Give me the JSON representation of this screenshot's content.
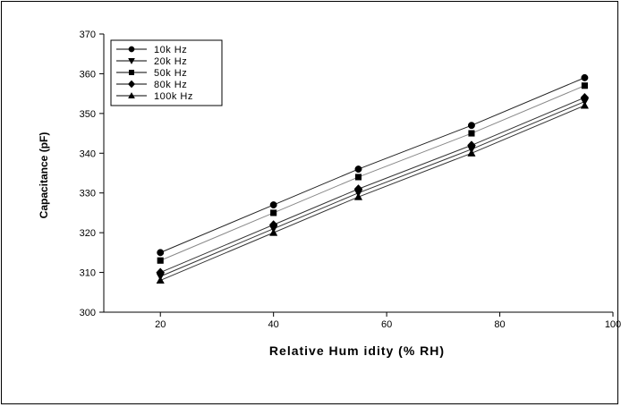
{
  "chart_data": {
    "type": "line",
    "title": "",
    "xlabel": "Relative Hum idity (% RH)",
    "ylabel": "Capacitance (pF)",
    "xlim": [
      10,
      100
    ],
    "ylim": [
      300,
      370
    ],
    "x_ticks": [
      20,
      40,
      60,
      80,
      100
    ],
    "y_ticks": [
      300,
      310,
      320,
      330,
      340,
      350,
      360,
      370
    ],
    "grid": false,
    "legend_position": "top-left",
    "x": [
      20,
      40,
      55,
      75,
      95
    ],
    "series": [
      {
        "name": "10k Hz",
        "marker": "circle",
        "color": "#000000",
        "values": [
          315,
          327,
          336,
          347,
          359
        ]
      },
      {
        "name": "20k Hz",
        "marker": "triangle-down",
        "color": "#000000",
        "values": [
          309,
          321,
          330,
          341,
          353
        ]
      },
      {
        "name": "50k Hz",
        "marker": "square",
        "color": "#000000",
        "values": [
          313,
          325,
          334,
          345,
          357
        ]
      },
      {
        "name": "80k Hz",
        "marker": "diamond",
        "color": "#000000",
        "values": [
          310,
          322,
          331,
          342,
          354
        ]
      },
      {
        "name": "100k Hz",
        "marker": "triangle-up",
        "color": "#000000",
        "values": [
          308,
          320,
          329,
          340,
          352
        ]
      }
    ]
  }
}
